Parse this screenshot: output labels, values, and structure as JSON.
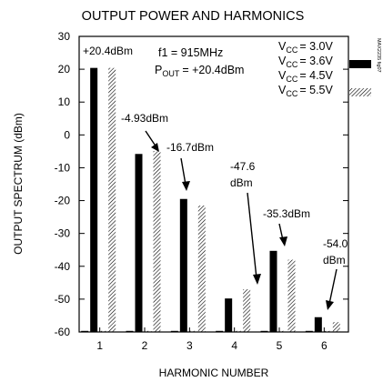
{
  "chart_data": {
    "type": "bar",
    "title": "OUTPUT POWER AND HARMONICS",
    "xlabel": "HARMONIC NUMBER",
    "ylabel": "OUTPUT SPECTRUM (dBm)",
    "ylim": [
      -60,
      30
    ],
    "yticks": [
      30,
      20,
      10,
      0,
      -10,
      -20,
      -30,
      -40,
      -50,
      -60
    ],
    "categories": [
      "1",
      "2",
      "3",
      "4",
      "5",
      "6"
    ],
    "series": [
      {
        "name": "VCC = 3.0V",
        "values": [
          -60,
          -60,
          -60,
          -60,
          -60,
          -60
        ],
        "style": "solid"
      },
      {
        "name": "VCC = 3.6V",
        "values": [
          20.4,
          -5.8,
          -19.5,
          -49.8,
          -35.3,
          -55.5
        ],
        "style": "solid"
      },
      {
        "name": "VCC = 4.5V",
        "values": [
          -60,
          -60,
          -60,
          -60,
          -60,
          -60
        ],
        "style": "hatched"
      },
      {
        "name": "VCC = 5.5V",
        "values": [
          20.4,
          -4.93,
          -21.5,
          -47.0,
          -38.0,
          -57.0
        ],
        "style": "hatched"
      }
    ],
    "annotations": [
      {
        "text": "+20.4dBm"
      },
      {
        "text": "-4.93dBm"
      },
      {
        "text": "-16.7dBm"
      },
      {
        "text": "-47.6"
      },
      {
        "text": "dBm"
      },
      {
        "text": "-35.3dBm"
      },
      {
        "text": "-54.0"
      },
      {
        "text": "dBm"
      }
    ],
    "info": [
      "f1 = 915MHz",
      "+20.4dBm"
    ],
    "legend_prefix": "V",
    "legend_sub": "CC",
    "legend_values": [
      "= 3.0V",
      "= 3.6V",
      "= 4.5V",
      "= 5.5V"
    ],
    "pout_prefix": "P",
    "pout_sub": "OUT",
    "pout_eq": "= ",
    "part_label": "MAX2235 fig07"
  },
  "colors": {
    "bar": "#000000",
    "hatch": "#000000",
    "background": "#ffffff"
  }
}
